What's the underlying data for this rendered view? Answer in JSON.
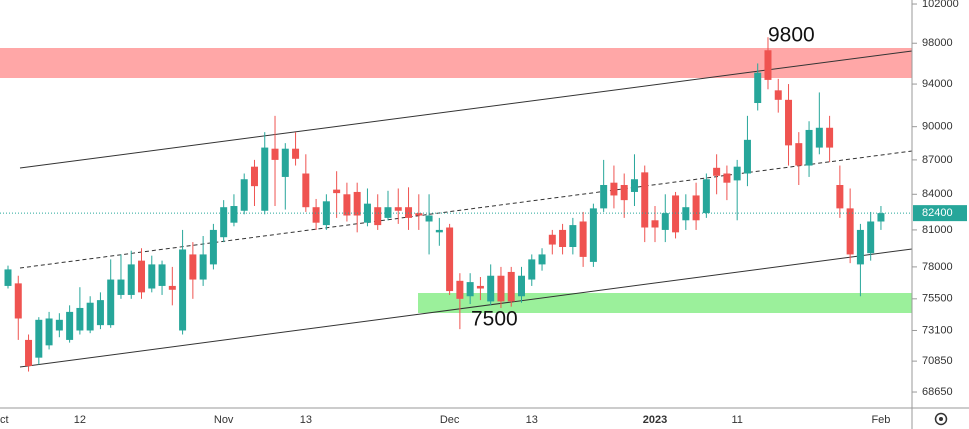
{
  "chart_data": {
    "type": "candlestick",
    "log_scale": true,
    "up_color": "#26a69a",
    "down_color": "#ef5350",
    "categories": [
      "ct",
      null,
      null,
      null,
      null,
      null,
      null,
      "12",
      null,
      null,
      null,
      null,
      null,
      null,
      null,
      null,
      null,
      null,
      null,
      null,
      null,
      "Nov",
      null,
      null,
      null,
      null,
      null,
      null,
      null,
      "13",
      null,
      null,
      null,
      null,
      null,
      null,
      null,
      null,
      null,
      null,
      null,
      null,
      null,
      "Dec",
      null,
      null,
      null,
      null,
      null,
      null,
      null,
      "13",
      null,
      null,
      null,
      null,
      null,
      null,
      null,
      null,
      null,
      null,
      null,
      "2023",
      null,
      null,
      null,
      null,
      null,
      null,
      null,
      "11",
      null,
      null,
      null,
      null,
      null,
      null,
      null,
      null,
      null,
      null,
      null,
      null,
      null,
      "Feb"
    ],
    "open": [
      76500,
      76700,
      72400,
      71100,
      72000,
      73100,
      72400,
      73100,
      73100,
      73500,
      73500,
      75800,
      75800,
      78500,
      76300,
      76500,
      76500,
      73100,
      79000,
      77000,
      78200,
      80400,
      81600,
      82600,
      86400,
      82600,
      88000,
      85500,
      88000,
      85800,
      82900,
      81400,
      84400,
      84000,
      84200,
      81600,
      82900,
      82000,
      82900,
      82900,
      82400,
      81700,
      80800,
      81200,
      76900,
      75700,
      76500,
      75300,
      77300,
      77600,
      75700,
      77000,
      78200,
      80600,
      81000,
      79600,
      81700,
      78400,
      82800,
      85000,
      84800,
      84200,
      85900,
      81800,
      81000,
      83900,
      81800,
      83900,
      82400,
      86300,
      85800,
      85200,
      85800,
      92200,
      97300,
      93400,
      92500,
      88500,
      86500,
      88100,
      89900,
      84800,
      82800,
      78200,
      79100,
      81700
    ],
    "high": [
      78100,
      77300,
      72800,
      74100,
      74500,
      74400,
      75000,
      76400,
      75700,
      76000,
      78600,
      79000,
      79300,
      79500,
      78900,
      78500,
      78000,
      81000,
      80000,
      80500,
      81500,
      83500,
      84000,
      85800,
      87000,
      89500,
      91000,
      88500,
      89500,
      87500,
      83600,
      84000,
      86000,
      85000,
      85000,
      84500,
      84000,
      84300,
      84500,
      84600,
      84000,
      84000,
      82000,
      81500,
      77500,
      77500,
      77200,
      78200,
      78000,
      78000,
      78000,
      79000,
      79500,
      81000,
      81500,
      82000,
      82500,
      83200,
      87000,
      86500,
      85800,
      87500,
      86500,
      83000,
      84000,
      84200,
      84000,
      85000,
      85800,
      87500,
      86500,
      87000,
      91000,
      96000,
      98600,
      94500,
      94000,
      89500,
      90500,
      93200,
      91000,
      86500,
      84500,
      81500,
      82500,
      83000
    ],
    "low": [
      76300,
      72400,
      70100,
      70600,
      71700,
      72600,
      72200,
      72800,
      72900,
      73200,
      73300,
      75500,
      75500,
      75500,
      76000,
      75800,
      75000,
      72800,
      75500,
      76500,
      77800,
      80000,
      81300,
      82300,
      83000,
      82300,
      83000,
      82700,
      86500,
      82500,
      81000,
      81000,
      82000,
      81700,
      80800,
      81300,
      81000,
      81800,
      81500,
      81000,
      81000,
      79000,
      79700,
      75800,
      73200,
      75100,
      75400,
      75000,
      74800,
      74900,
      75200,
      76500,
      77700,
      79000,
      79000,
      79000,
      78000,
      78000,
      82500,
      82800,
      82000,
      83000,
      80000,
      80000,
      80000,
      80300,
      81000,
      81000,
      82000,
      84000,
      83500,
      81800,
      84700,
      91500,
      93500,
      91300,
      86500,
      84800,
      85500,
      87500,
      86800,
      82000,
      78300,
      75700,
      78500,
      81000
    ],
    "close": [
      77800,
      74000,
      70500,
      73900,
      74000,
      73900,
      74500,
      74800,
      75200,
      75400,
      77000,
      77000,
      78200,
      76000,
      78200,
      78200,
      76200,
      79400,
      77000,
      79000,
      81000,
      82900,
      83000,
      85300,
      84700,
      88100,
      87000,
      88000,
      87100,
      82900,
      81600,
      83400,
      84100,
      82200,
      82200,
      83200,
      81400,
      82900,
      82600,
      82000,
      82200,
      82200,
      81000,
      76100,
      75500,
      76800,
      76300,
      77300,
      75300,
      75300,
      77300,
      78600,
      79000,
      79800,
      79600,
      81400,
      78800,
      82800,
      84800,
      83900,
      83500,
      85300,
      81200,
      81200,
      82400,
      80800,
      82900,
      81800,
      85300,
      85600,
      85000,
      86400,
      88800,
      95100,
      94400,
      92500,
      88300,
      86500,
      89700,
      89900,
      88100,
      82800,
      79000,
      81000,
      81700,
      82400
    ],
    "ylim": [
      67540,
      102420
    ],
    "yticks": [
      102000,
      98000,
      94000,
      90000,
      87000,
      84000,
      81000,
      78000,
      75500,
      73100,
      70850,
      68650
    ],
    "last_price": 82400,
    "annotations": [
      "9800",
      "7500"
    ]
  }
}
